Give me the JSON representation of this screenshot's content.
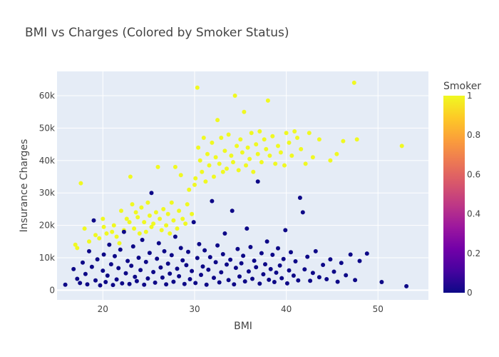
{
  "chart_data": {
    "type": "scatter",
    "title": "BMI vs Charges (Colored by Smoker Status)",
    "xlabel": "BMI",
    "ylabel": "Insurance Charges",
    "xlim": [
      15,
      55.5
    ],
    "ylim": [
      -3000,
      67500
    ],
    "x_ticks": [
      20,
      30,
      40,
      50
    ],
    "x_tick_labels": [
      "20",
      "30",
      "40",
      "50"
    ],
    "y_ticks": [
      0,
      10000,
      20000,
      30000,
      40000,
      50000,
      60000
    ],
    "y_tick_labels": [
      "0",
      "10k",
      "20k",
      "30k",
      "40k",
      "50k",
      "60k"
    ],
    "grid": true,
    "colorbar": {
      "title": "Smoker",
      "range": [
        0,
        1
      ],
      "ticks": [
        0,
        0.2,
        0.4,
        0.6,
        0.8,
        1
      ],
      "tick_labels": [
        "0",
        "0.2",
        "0.4",
        "0.6",
        "0.8",
        "1"
      ],
      "colorscale": [
        "#0d0887",
        "#46039f",
        "#7201a8",
        "#9c179e",
        "#bd3786",
        "#d8576b",
        "#ed7953",
        "#fb9f3a",
        "#fdca26",
        "#f0f921"
      ]
    },
    "series": [
      {
        "smoker": 1,
        "color": "#f0f921",
        "points": [
          [
            17.0,
            14000
          ],
          [
            17.2,
            13000
          ],
          [
            17.6,
            33000
          ],
          [
            18.0,
            19000
          ],
          [
            18.5,
            15000
          ],
          [
            19.2,
            17000
          ],
          [
            19.6,
            16000
          ],
          [
            20.0,
            22000
          ],
          [
            20.1,
            19500
          ],
          [
            20.4,
            17500
          ],
          [
            21.0,
            18000
          ],
          [
            21.2,
            20000
          ],
          [
            21.5,
            16500
          ],
          [
            21.8,
            14500
          ],
          [
            22.0,
            24500
          ],
          [
            22.3,
            18500
          ],
          [
            22.6,
            22000
          ],
          [
            22.9,
            21000
          ],
          [
            23.0,
            35000
          ],
          [
            23.2,
            26500
          ],
          [
            23.4,
            19000
          ],
          [
            23.6,
            24000
          ],
          [
            23.8,
            22500
          ],
          [
            24.0,
            17500
          ],
          [
            24.2,
            25500
          ],
          [
            24.5,
            21000
          ],
          [
            24.7,
            18000
          ],
          [
            24.9,
            27000
          ],
          [
            25.1,
            23000
          ],
          [
            25.3,
            19500
          ],
          [
            25.5,
            20500
          ],
          [
            25.8,
            24000
          ],
          [
            26.0,
            38000
          ],
          [
            26.2,
            22000
          ],
          [
            26.4,
            18500
          ],
          [
            26.6,
            25000
          ],
          [
            26.9,
            20000
          ],
          [
            27.1,
            23500
          ],
          [
            27.3,
            17500
          ],
          [
            27.5,
            27000
          ],
          [
            27.7,
            21500
          ],
          [
            27.9,
            38000
          ],
          [
            28.1,
            19000
          ],
          [
            28.3,
            24500
          ],
          [
            28.5,
            35500
          ],
          [
            28.7,
            22000
          ],
          [
            29.0,
            20500
          ],
          [
            29.2,
            26500
          ],
          [
            29.4,
            31000
          ],
          [
            29.7,
            23500
          ],
          [
            30.0,
            32500
          ],
          [
            30.1,
            34500
          ],
          [
            30.3,
            62500
          ],
          [
            30.4,
            44000
          ],
          [
            30.6,
            40000
          ],
          [
            30.8,
            36500
          ],
          [
            31.0,
            47000
          ],
          [
            31.2,
            33500
          ],
          [
            31.4,
            42000
          ],
          [
            31.6,
            38500
          ],
          [
            31.9,
            45500
          ],
          [
            32.1,
            35000
          ],
          [
            32.3,
            41000
          ],
          [
            32.5,
            52500
          ],
          [
            32.7,
            39000
          ],
          [
            32.9,
            47000
          ],
          [
            33.1,
            36500
          ],
          [
            33.3,
            43000
          ],
          [
            33.5,
            37500
          ],
          [
            33.7,
            48000
          ],
          [
            34.0,
            41500
          ],
          [
            34.2,
            39500
          ],
          [
            34.4,
            60000
          ],
          [
            34.6,
            44500
          ],
          [
            34.8,
            37000
          ],
          [
            35.0,
            46500
          ],
          [
            35.2,
            42500
          ],
          [
            35.4,
            55000
          ],
          [
            35.6,
            38500
          ],
          [
            35.8,
            44000
          ],
          [
            36.0,
            40500
          ],
          [
            36.2,
            48500
          ],
          [
            36.4,
            36500
          ],
          [
            36.7,
            45000
          ],
          [
            36.9,
            42000
          ],
          [
            37.1,
            49000
          ],
          [
            37.3,
            39500
          ],
          [
            37.6,
            46500
          ],
          [
            37.8,
            43500
          ],
          [
            38.0,
            58500
          ],
          [
            38.2,
            41500
          ],
          [
            38.5,
            47500
          ],
          [
            38.8,
            39000
          ],
          [
            39.1,
            44500
          ],
          [
            39.4,
            42500
          ],
          [
            39.8,
            38500
          ],
          [
            40.0,
            48500
          ],
          [
            40.3,
            45500
          ],
          [
            40.6,
            41500
          ],
          [
            40.9,
            49000
          ],
          [
            41.2,
            47000
          ],
          [
            41.6,
            43500
          ],
          [
            42.1,
            39000
          ],
          [
            42.5,
            48500
          ],
          [
            42.9,
            41000
          ],
          [
            43.6,
            46500
          ],
          [
            44.8,
            40000
          ],
          [
            45.5,
            42000
          ],
          [
            46.2,
            46000
          ],
          [
            47.4,
            64000
          ],
          [
            47.7,
            46500
          ],
          [
            52.6,
            44500
          ]
        ]
      },
      {
        "smoker": 0,
        "color": "#0d0887",
        "points": [
          [
            15.9,
            1700
          ],
          [
            16.8,
            6500
          ],
          [
            17.2,
            3500
          ],
          [
            17.5,
            2200
          ],
          [
            17.8,
            8500
          ],
          [
            18.1,
            5000
          ],
          [
            18.3,
            1800
          ],
          [
            18.5,
            12000
          ],
          [
            18.8,
            7200
          ],
          [
            19.0,
            21500
          ],
          [
            19.2,
            3000
          ],
          [
            19.4,
            9500
          ],
          [
            19.7,
            1500
          ],
          [
            20.0,
            6000
          ],
          [
            20.1,
            11000
          ],
          [
            20.3,
            2500
          ],
          [
            20.5,
            4500
          ],
          [
            20.7,
            14000
          ],
          [
            20.9,
            8000
          ],
          [
            21.1,
            1600
          ],
          [
            21.3,
            10500
          ],
          [
            21.5,
            3300
          ],
          [
            21.7,
            6800
          ],
          [
            21.9,
            12500
          ],
          [
            22.1,
            2100
          ],
          [
            22.3,
            18000
          ],
          [
            22.5,
            5200
          ],
          [
            22.7,
            9000
          ],
          [
            22.9,
            1900
          ],
          [
            23.1,
            7500
          ],
          [
            23.3,
            13500
          ],
          [
            23.5,
            4100
          ],
          [
            23.7,
            2800
          ],
          [
            23.9,
            10000
          ],
          [
            24.1,
            6200
          ],
          [
            24.3,
            15500
          ],
          [
            24.5,
            1700
          ],
          [
            24.7,
            8700
          ],
          [
            24.9,
            3600
          ],
          [
            25.1,
            11500
          ],
          [
            25.3,
            30000
          ],
          [
            25.5,
            5600
          ],
          [
            25.7,
            2300
          ],
          [
            25.9,
            9700
          ],
          [
            26.1,
            14500
          ],
          [
            26.3,
            7000
          ],
          [
            26.5,
            3900
          ],
          [
            26.7,
            12000
          ],
          [
            26.9,
            1800
          ],
          [
            27.1,
            8200
          ],
          [
            27.3,
            5100
          ],
          [
            27.5,
            10800
          ],
          [
            27.7,
            2600
          ],
          [
            27.9,
            16500
          ],
          [
            28.1,
            6600
          ],
          [
            28.3,
            4300
          ],
          [
            28.5,
            13000
          ],
          [
            28.7,
            9200
          ],
          [
            28.9,
            1900
          ],
          [
            29.1,
            7700
          ],
          [
            29.3,
            11800
          ],
          [
            29.5,
            3400
          ],
          [
            29.7,
            5900
          ],
          [
            29.9,
            21000
          ],
          [
            30.1,
            2200
          ],
          [
            30.3,
            9900
          ],
          [
            30.5,
            14200
          ],
          [
            30.7,
            4700
          ],
          [
            30.9,
            7300
          ],
          [
            31.1,
            12300
          ],
          [
            31.3,
            1700
          ],
          [
            31.5,
            6300
          ],
          [
            31.7,
            10200
          ],
          [
            31.9,
            27500
          ],
          [
            32.1,
            3800
          ],
          [
            32.3,
            8600
          ],
          [
            32.5,
            13800
          ],
          [
            32.7,
            2400
          ],
          [
            32.9,
            5500
          ],
          [
            33.1,
            11100
          ],
          [
            33.3,
            17500
          ],
          [
            33.5,
            7900
          ],
          [
            33.7,
            3100
          ],
          [
            33.9,
            9400
          ],
          [
            34.1,
            24500
          ],
          [
            34.3,
            1800
          ],
          [
            34.5,
            6900
          ],
          [
            34.7,
            12700
          ],
          [
            34.9,
            4200
          ],
          [
            35.1,
            8300
          ],
          [
            35.3,
            10600
          ],
          [
            35.5,
            2700
          ],
          [
            35.7,
            19000
          ],
          [
            35.9,
            5800
          ],
          [
            36.1,
            13300
          ],
          [
            36.3,
            3500
          ],
          [
            36.5,
            9100
          ],
          [
            36.7,
            7100
          ],
          [
            36.9,
            33500
          ],
          [
            37.1,
            2000
          ],
          [
            37.3,
            11400
          ],
          [
            37.5,
            4900
          ],
          [
            37.7,
            8000
          ],
          [
            37.9,
            15000
          ],
          [
            38.1,
            3200
          ],
          [
            38.3,
            6500
          ],
          [
            38.5,
            10900
          ],
          [
            38.7,
            2500
          ],
          [
            38.9,
            5400
          ],
          [
            39.1,
            12900
          ],
          [
            39.3,
            7600
          ],
          [
            39.5,
            3700
          ],
          [
            39.7,
            9600
          ],
          [
            39.9,
            18500
          ],
          [
            40.1,
            2100
          ],
          [
            40.3,
            6100
          ],
          [
            40.5,
            11700
          ],
          [
            40.8,
            4500
          ],
          [
            41.0,
            8900
          ],
          [
            41.3,
            3000
          ],
          [
            41.5,
            28500
          ],
          [
            41.8,
            24000
          ],
          [
            42.0,
            6400
          ],
          [
            42.3,
            10300
          ],
          [
            42.6,
            2900
          ],
          [
            42.9,
            5300
          ],
          [
            43.2,
            12000
          ],
          [
            43.6,
            4000
          ],
          [
            44.0,
            7800
          ],
          [
            44.4,
            3400
          ],
          [
            44.8,
            9500
          ],
          [
            45.2,
            5700
          ],
          [
            45.6,
            2600
          ],
          [
            46.0,
            8400
          ],
          [
            46.5,
            4600
          ],
          [
            47.0,
            11000
          ],
          [
            47.5,
            3100
          ],
          [
            48.0,
            9000
          ],
          [
            48.8,
            11300
          ],
          [
            50.4,
            2500
          ],
          [
            53.1,
            1200
          ]
        ]
      }
    ]
  }
}
